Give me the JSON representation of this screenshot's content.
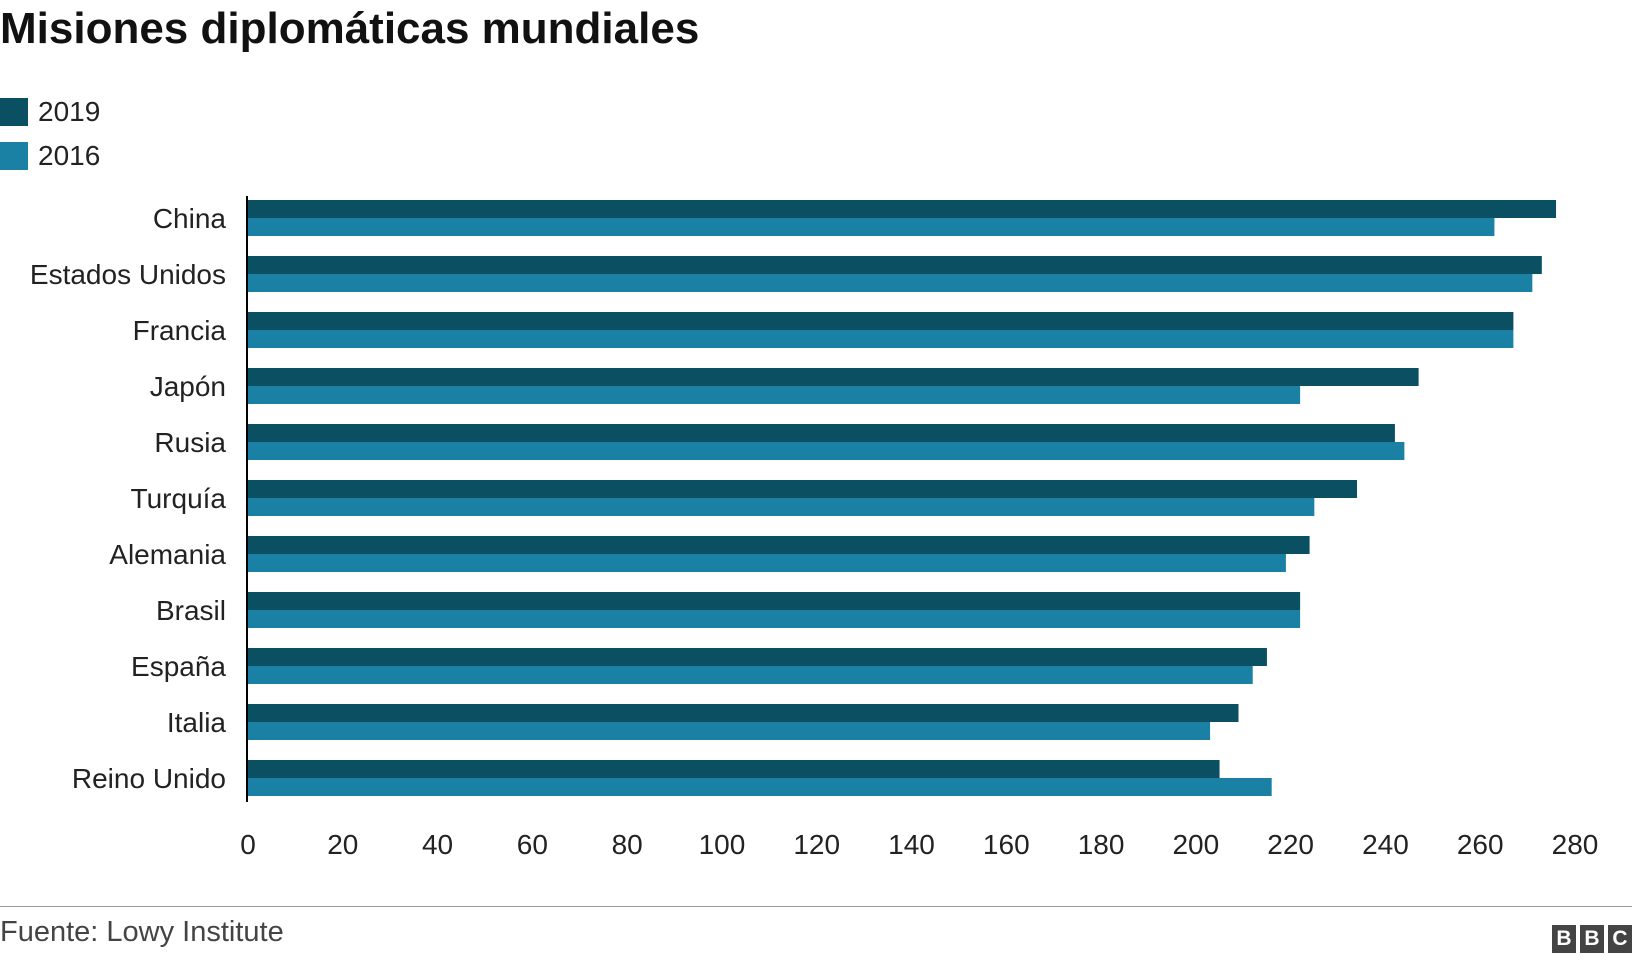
{
  "header": {
    "title": "Misiones diplomáticas mundiales"
  },
  "footer": {
    "source": "Fuente: Lowy Institute",
    "logo_letters": [
      "B",
      "B",
      "C"
    ]
  },
  "colors": {
    "series_2019": "#0b4f63",
    "series_2016": "#1a80a4",
    "axis": "#000000"
  },
  "chart_data": {
    "type": "bar",
    "orientation": "horizontal",
    "title": "Misiones diplomáticas mundiales",
    "categories": [
      "China",
      "Estados Unidos",
      "Francia",
      "Japón",
      "Rusia",
      "Turquía",
      "Alemania",
      "Brasil",
      "España",
      "Italia",
      "Reino Unido"
    ],
    "series": [
      {
        "name": "2019",
        "values": [
          276,
          273,
          267,
          247,
          242,
          234,
          224,
          222,
          215,
          209,
          205
        ]
      },
      {
        "name": "2016",
        "values": [
          263,
          271,
          267,
          222,
          244,
          225,
          219,
          222,
          212,
          203,
          216
        ]
      }
    ],
    "xlim": [
      0,
      280
    ],
    "xticks": [
      0,
      20,
      40,
      60,
      80,
      100,
      120,
      140,
      160,
      180,
      200,
      220,
      240,
      260,
      280
    ],
    "grid": false,
    "legend": "top-left"
  }
}
